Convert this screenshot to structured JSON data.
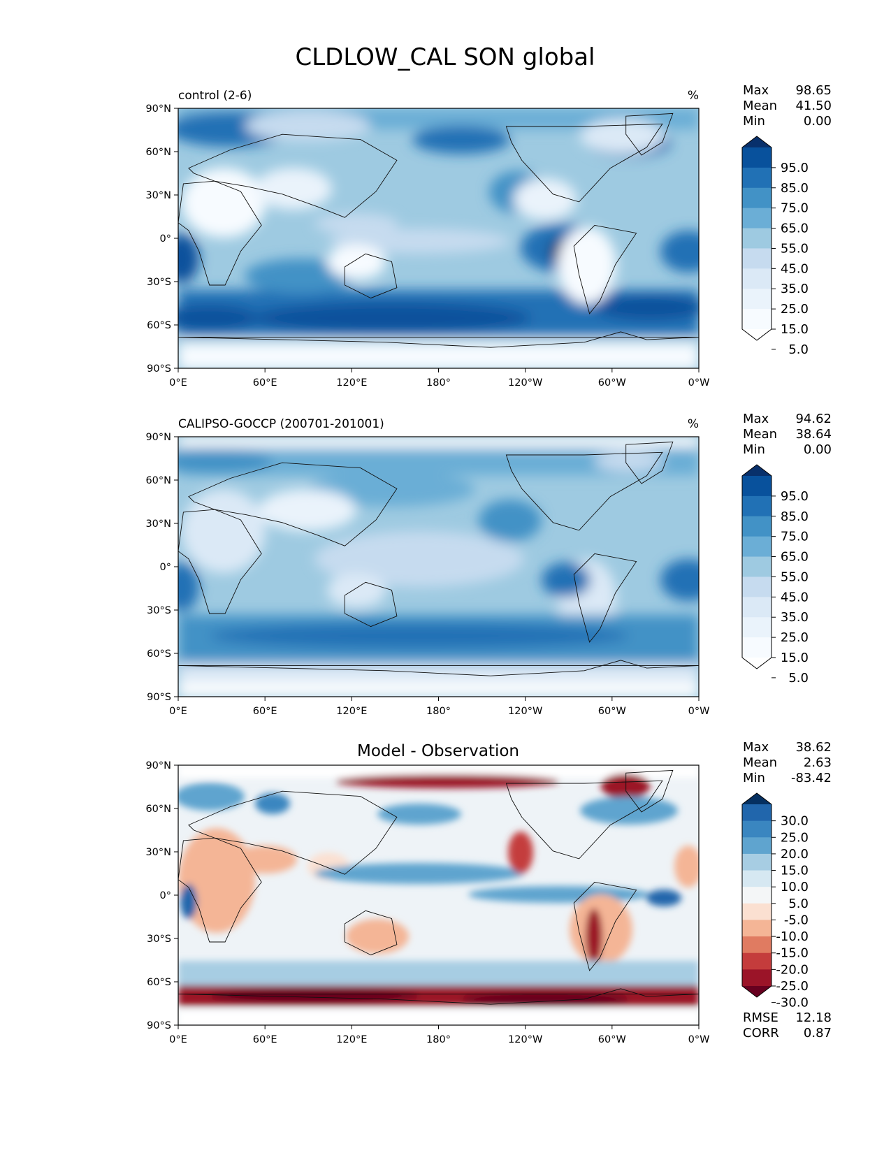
{
  "figure": {
    "title": "CLDLOW_CAL SON global"
  },
  "lat_ticks": [
    "90°N",
    "60°N",
    "30°N",
    "0°",
    "30°S",
    "60°S",
    "90°S"
  ],
  "lon_ticks": [
    "0°E",
    "60°E",
    "120°E",
    "180°",
    "120°W",
    "60°W",
    "0°W"
  ],
  "panels": [
    {
      "id": "model",
      "left_title": "control (2-6)",
      "center_title": "",
      "units": "%",
      "stats": [
        {
          "label": "Max",
          "value": "98.65"
        },
        {
          "label": "Mean",
          "value": "41.50"
        },
        {
          "label": "Min",
          "value": "0.00"
        }
      ],
      "bottom_stats": [],
      "colorbar": {
        "ticks": [
          "95.0",
          "85.0",
          "75.0",
          "65.0",
          "55.0",
          "45.0",
          "35.0",
          "25.0",
          "15.0",
          "5.0"
        ],
        "colors": [
          "#08306b",
          "#08519c",
          "#2171b5",
          "#4292c6",
          "#6baed6",
          "#9ecae1",
          "#c6dbef",
          "#dbe9f6",
          "#eaf3fb",
          "#f7fbff",
          "#ffffff"
        ]
      }
    },
    {
      "id": "obs",
      "left_title": "CALIPSO-GOCCP (200701-201001)",
      "center_title": "",
      "units": "%",
      "stats": [
        {
          "label": "Max",
          "value": "94.62"
        },
        {
          "label": "Mean",
          "value": "38.64"
        },
        {
          "label": "Min",
          "value": "0.00"
        }
      ],
      "bottom_stats": [],
      "colorbar": {
        "ticks": [
          "95.0",
          "85.0",
          "75.0",
          "65.0",
          "55.0",
          "45.0",
          "35.0",
          "25.0",
          "15.0",
          "5.0"
        ],
        "colors": [
          "#08306b",
          "#08519c",
          "#2171b5",
          "#4292c6",
          "#6baed6",
          "#9ecae1",
          "#c6dbef",
          "#dbe9f6",
          "#eaf3fb",
          "#f7fbff",
          "#ffffff"
        ]
      }
    },
    {
      "id": "diff",
      "left_title": "",
      "center_title": "Model - Observation",
      "units": "",
      "stats": [
        {
          "label": "Max",
          "value": "38.62"
        },
        {
          "label": "Mean",
          "value": "2.63"
        },
        {
          "label": "Min",
          "value": "-83.42"
        }
      ],
      "bottom_stats": [
        {
          "label": "RMSE",
          "value": "12.18"
        },
        {
          "label": "CORR",
          "value": "0.87"
        }
      ],
      "colorbar": {
        "ticks": [
          "30.0",
          "25.0",
          "20.0",
          "15.0",
          "10.0",
          "5.0",
          "-5.0",
          "-10.0",
          "-15.0",
          "-20.0",
          "-25.0",
          "-30.0"
        ],
        "colors": [
          "#053061",
          "#2166ac",
          "#3a86c0",
          "#5fa4cf",
          "#a7cde3",
          "#d6e8f2",
          "#f4f6f7",
          "#fbe0d1",
          "#f4b596",
          "#e07b61",
          "#c43c3c",
          "#9b1428",
          "#67001f"
        ]
      }
    }
  ]
}
